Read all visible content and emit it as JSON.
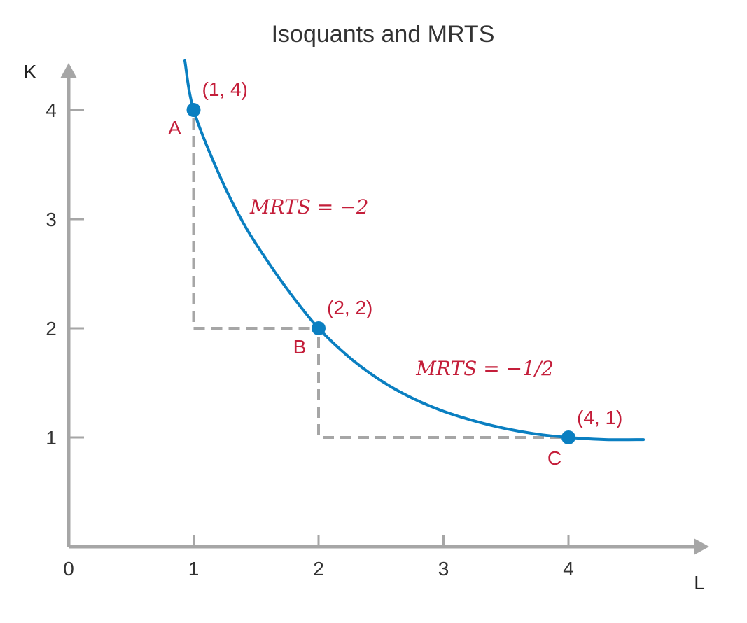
{
  "chart_data": {
    "type": "line",
    "title": "Isoquants and MRTS",
    "xlabel": "L",
    "ylabel": "K",
    "origin_label": "0",
    "xlim": [
      0,
      4.7
    ],
    "ylim": [
      0,
      4.45
    ],
    "x_ticks": [
      1,
      2,
      3,
      4
    ],
    "y_ticks": [
      1,
      2,
      3,
      4
    ],
    "x_tick_labels": [
      "1",
      "2",
      "3",
      "4"
    ],
    "y_tick_labels": [
      "1",
      "2",
      "3",
      "4"
    ],
    "grid": false,
    "legend": "none",
    "series": [
      {
        "x": [
          0.93,
          1,
          1.2,
          1.4,
          1.6,
          1.8,
          2,
          2.25,
          2.5,
          2.75,
          3,
          3.25,
          3.5,
          3.75,
          4,
          4.3,
          4.6
        ],
        "y": [
          4.45,
          4,
          3.42,
          2.96,
          2.6,
          2.28,
          2,
          1.73,
          1.52,
          1.36,
          1.24,
          1.15,
          1.08,
          1.03,
          1,
          0.98,
          0.98
        ]
      }
    ],
    "points": [
      {
        "label": "A",
        "coord_label": "(1, 4)",
        "x": 1,
        "y": 4
      },
      {
        "label": "B",
        "coord_label": "(2, 2)",
        "x": 2,
        "y": 2
      },
      {
        "label": "C",
        "coord_label": "(4, 1)",
        "x": 4,
        "y": 1
      }
    ],
    "annotations": [
      {
        "text": "MRTS = −2",
        "x": 1.45,
        "y": 3.05
      },
      {
        "text": "MRTS = −1/2",
        "x": 2.78,
        "y": 1.57
      }
    ],
    "dashed_guides": [
      {
        "from": [
          1,
          4
        ],
        "corner": [
          1,
          2
        ],
        "to": [
          2,
          2
        ]
      },
      {
        "from": [
          2,
          2
        ],
        "corner": [
          2,
          1
        ],
        "to": [
          4,
          1
        ]
      }
    ],
    "colors": {
      "curve": "#0a7fc1",
      "point": "#0a7fc1",
      "label": "#c41e3a",
      "axis": "#a6a6a6",
      "guide": "#a6a6a6"
    }
  }
}
